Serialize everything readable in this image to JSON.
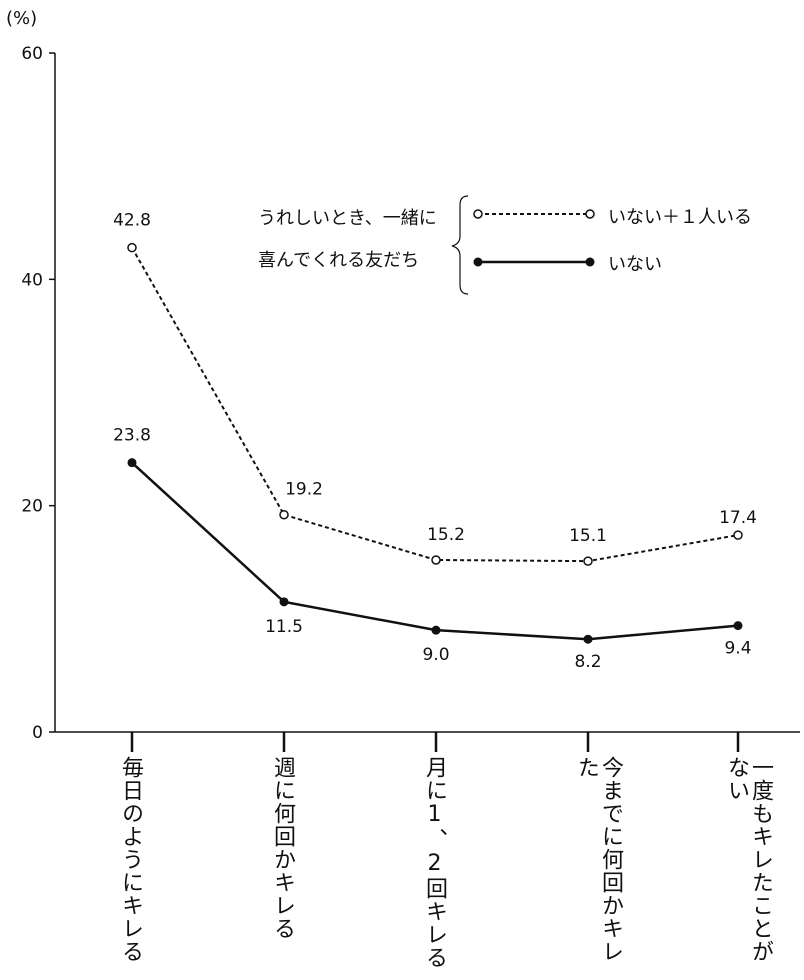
{
  "chart_data": {
    "type": "line",
    "y_unit": "(%)",
    "ylim": [
      0,
      60
    ],
    "y_ticks": [
      0,
      20,
      40,
      60
    ],
    "categories": [
      "毎日のようにキレる",
      "週に何回かキレる",
      "月に1、2回キレる",
      "今までに何回かキレた",
      "一度もキレたことがない"
    ],
    "series": [
      {
        "name": "いない＋１人いる",
        "style": "dashed",
        "marker": "open-circle",
        "color": "#111111",
        "values": [
          42.8,
          19.2,
          15.2,
          15.1,
          17.4
        ]
      },
      {
        "name": "いない",
        "style": "solid",
        "marker": "filled-circle",
        "color": "#111111",
        "values": [
          23.8,
          11.5,
          9.0,
          8.2,
          9.4
        ]
      }
    ],
    "legend_title_lines": [
      "うれしいとき、一緒に",
      "喜んでくれる友だち"
    ],
    "legend_position": "top-right",
    "grid": false
  }
}
